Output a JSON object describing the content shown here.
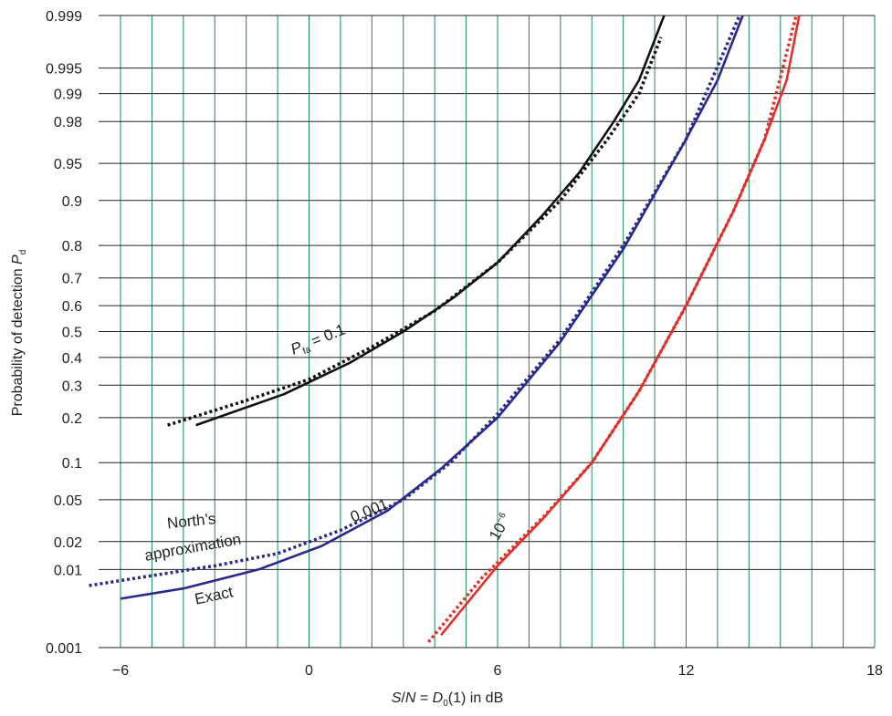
{
  "chart_data": {
    "type": "line",
    "xlabel": {
      "var1": "S",
      "slash": "/",
      "var2": "N",
      "eq": " = ",
      "var3": "D",
      "sub": "0",
      "tail": "(1) in dB"
    },
    "ylabel": {
      "text": "Probability of detection ",
      "var": "P",
      "sub": "d"
    },
    "x_ticks": [
      -6,
      0,
      6,
      12,
      18
    ],
    "x_tick_labels": [
      "−6",
      "0",
      "6",
      "12",
      "18"
    ],
    "xlim": [
      -6,
      18
    ],
    "y_scale": "probability",
    "y_ticks": [
      0.001,
      0.01,
      0.02,
      0.05,
      0.1,
      0.2,
      0.3,
      0.4,
      0.5,
      0.6,
      0.7,
      0.8,
      0.9,
      0.95,
      0.98,
      0.99,
      0.995,
      0.999
    ],
    "y_tick_labels": [
      "0.001",
      "0.01",
      "0.02",
      "0.05",
      "0.1",
      "0.2",
      "0.3",
      "0.4",
      "0.5",
      "0.6",
      "0.7",
      "0.8",
      "0.9",
      "0.95",
      "0.98",
      "0.99",
      "0.995",
      "0.999"
    ],
    "ylim": [
      0.001,
      0.999
    ],
    "grid": true,
    "colors": {
      "grid_vertical": "#1a8a5a",
      "grid_horizontal": "#222222",
      "series_pfa_0_1": "#111111",
      "series_pfa_0_001": "#2a2a8c",
      "series_pfa_1e_6": "#e0302a"
    },
    "series": [
      {
        "id": "pfa-0.1-exact",
        "style": "solid",
        "color": "#111111",
        "x": [
          -3.6,
          -0.8,
          1.3,
          3.0,
          4.6,
          6.0,
          7.4,
          8.6,
          9.7,
          10.5,
          11.3
        ],
        "y": [
          0.18,
          0.27,
          0.38,
          0.5,
          0.63,
          0.75,
          0.87,
          0.94,
          0.98,
          0.993,
          0.999
        ]
      },
      {
        "id": "pfa-0.1-north",
        "style": "dotted",
        "color": "#111111",
        "x": [
          -4.5,
          -2.0,
          0.0,
          2.0,
          4.0,
          6.0,
          8.0,
          9.5,
          10.5,
          11.2
        ],
        "y": [
          0.18,
          0.25,
          0.32,
          0.44,
          0.58,
          0.75,
          0.9,
          0.97,
          0.99,
          0.998
        ]
      },
      {
        "id": "pfa-0.001-exact",
        "style": "solid",
        "color": "#2a2a8c",
        "x": [
          -6.0,
          -4.0,
          -1.6,
          0.4,
          2.5,
          4.2,
          6.0,
          8.0,
          10.0,
          12.0,
          13.0,
          13.8
        ],
        "y": [
          0.0045,
          0.006,
          0.01,
          0.018,
          0.04,
          0.09,
          0.2,
          0.46,
          0.79,
          0.97,
          0.993,
          0.999
        ]
      },
      {
        "id": "pfa-0.001-north",
        "style": "dotted",
        "color": "#2a2a8c",
        "x": [
          -7.0,
          -5.0,
          -3.0,
          -1.0,
          1.0,
          3.0,
          4.5,
          6.0,
          8.0,
          10.0,
          12.0,
          13.7
        ],
        "y": [
          0.0065,
          0.0085,
          0.011,
          0.015,
          0.026,
          0.05,
          0.1,
          0.21,
          0.47,
          0.8,
          0.97,
          0.999
        ]
      },
      {
        "id": "pfa-1e-6-exact",
        "style": "solid",
        "color": "#e0302a",
        "x": [
          4.2,
          6.0,
          7.5,
          9.0,
          10.5,
          12.0,
          13.5,
          14.5,
          15.2,
          15.6
        ],
        "y": [
          0.0015,
          0.011,
          0.035,
          0.1,
          0.28,
          0.6,
          0.88,
          0.97,
          0.993,
          0.999
        ]
      },
      {
        "id": "pfa-1e-6-north",
        "style": "dotted",
        "color": "#e0302a",
        "x": [
          3.8,
          5.5,
          7.5,
          9.0,
          10.5,
          12.0,
          13.5,
          14.5,
          15.5
        ],
        "y": [
          0.0012,
          0.008,
          0.036,
          0.1,
          0.28,
          0.6,
          0.88,
          0.97,
          0.999
        ]
      }
    ],
    "annotations": [
      {
        "id": "pfa-0.1-label",
        "var": "P",
        "sub": "fa",
        "text": " = 0.1",
        "x": -0.5,
        "y": 0.41,
        "rotate": -22
      },
      {
        "id": "pfa-0.001-label",
        "text": "0.001",
        "x": 1.4,
        "y": 0.031,
        "rotate": -22
      },
      {
        "id": "pfa-1e-6-label",
        "base": "10",
        "sup": "−6",
        "x": 6.0,
        "y": 0.02,
        "rotate": -60
      },
      {
        "id": "north-label-1",
        "text": "North’s",
        "x": -4.5,
        "y": 0.027,
        "rotate": -6
      },
      {
        "id": "north-label-2",
        "text": "approximation",
        "x": -5.2,
        "y": 0.0125,
        "rotate": -10
      },
      {
        "id": "exact-label",
        "text": "Exact",
        "x": -3.6,
        "y": 0.0038,
        "rotate": -12
      }
    ]
  }
}
